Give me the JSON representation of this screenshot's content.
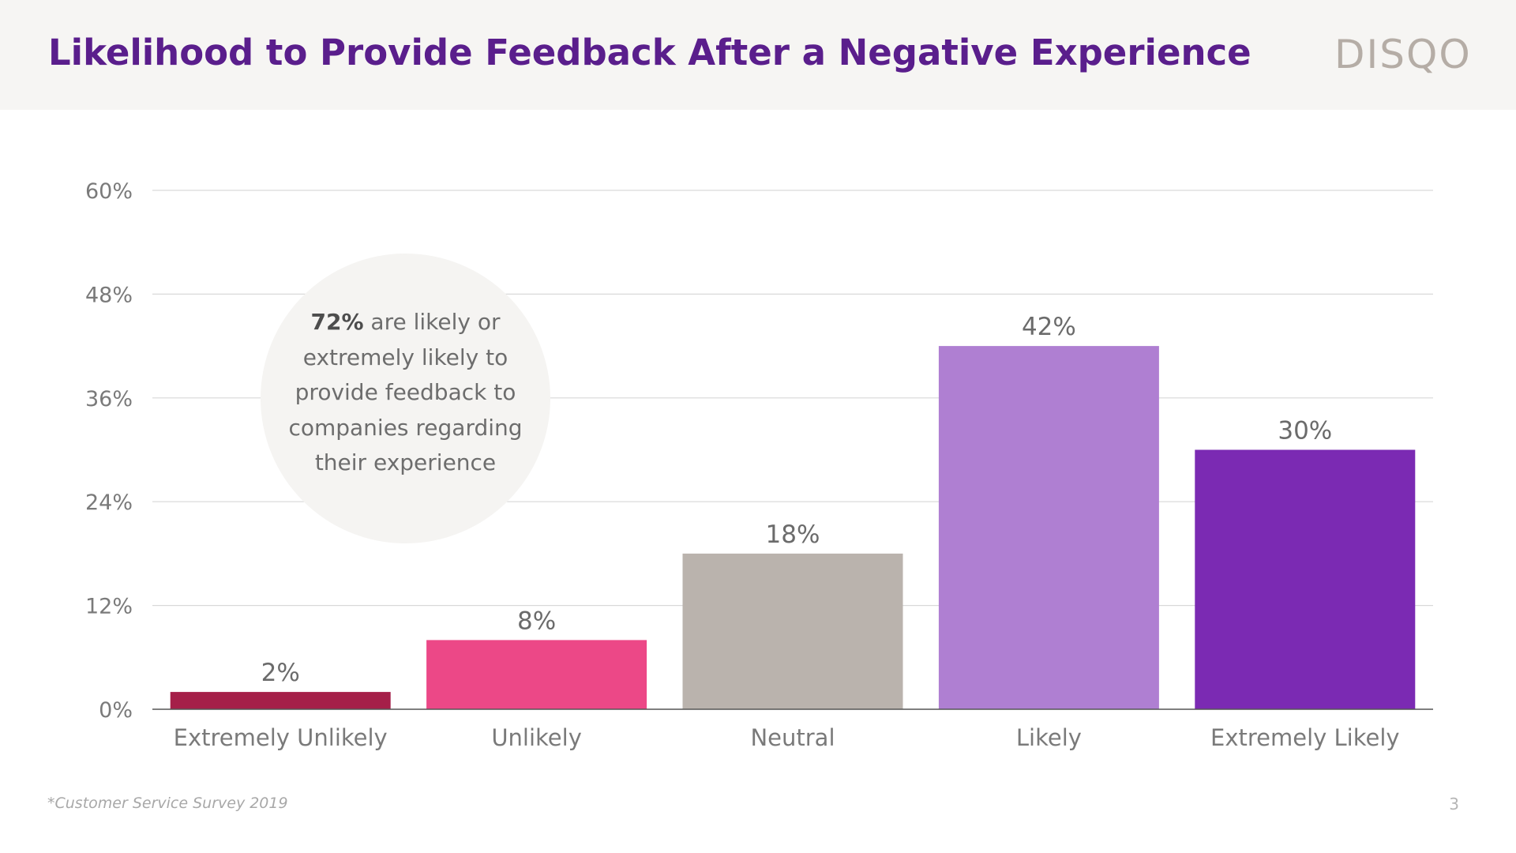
{
  "header": {
    "title": "Likelihood to Provide Feedback After a Negative Experience",
    "logo_text": "DISQO"
  },
  "callout": {
    "bold": "72%",
    "text": " are likely or extremely likely to provide feedback to companies regarding their experience"
  },
  "footer": {
    "source_note": "*Customer Service Survey 2019",
    "page_number": "3"
  },
  "colors": {
    "title": "#5a1e8c",
    "header_bg": "#f6f5f3",
    "logo": "#b5ada6"
  },
  "chart_data": {
    "type": "bar",
    "title": "",
    "xlabel": "",
    "ylabel": "",
    "ylim": [
      0,
      60
    ],
    "yticks": [
      0,
      12,
      24,
      36,
      48,
      60
    ],
    "ytick_labels": [
      "0%",
      "12%",
      "24%",
      "36%",
      "48%",
      "60%"
    ],
    "grid": true,
    "categories": [
      "Extremely Unlikely",
      "Unlikely",
      "Neutral",
      "Likely",
      "Extremely Likely"
    ],
    "values": [
      2,
      8,
      18,
      42,
      30
    ],
    "data_labels": [
      "2%",
      "8%",
      "18%",
      "42%",
      "30%"
    ],
    "colors": [
      "#a51f49",
      "#ec4887",
      "#bab3ad",
      "#af7fd2",
      "#7b2ab3"
    ]
  }
}
